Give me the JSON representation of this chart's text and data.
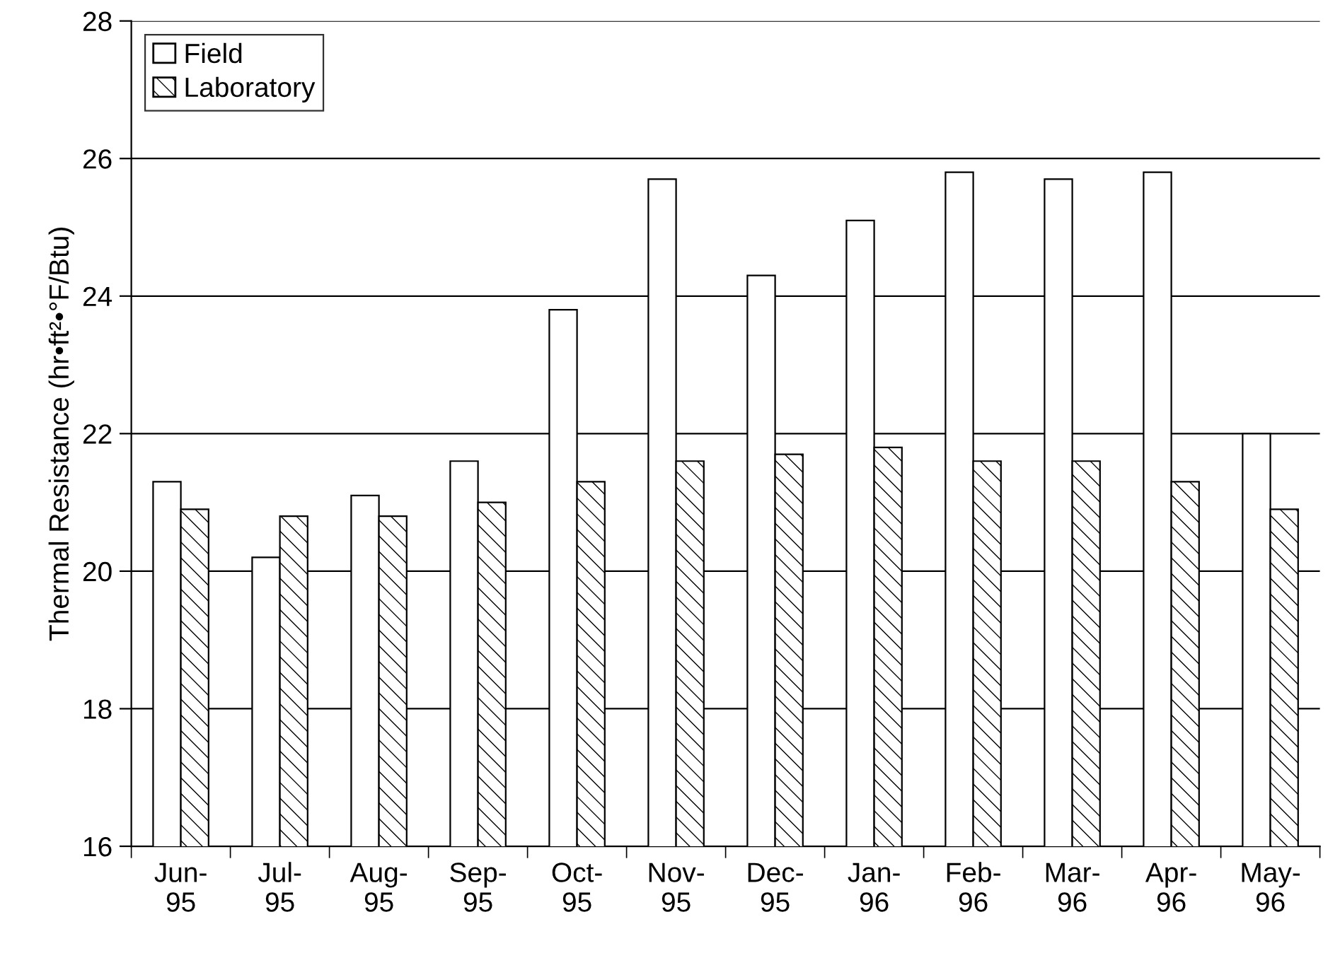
{
  "chart_data": {
    "type": "bar",
    "ylabel": "Thermal Resistance (hr•ft²•°F/Btu)",
    "categories": [
      "Jun-\n95",
      "Jul-\n95",
      "Aug-\n95",
      "Sep-\n95",
      "Oct-\n95",
      "Nov-\n95",
      "Dec-\n95",
      "Jan-\n96",
      "Feb-\n96",
      "Mar-\n96",
      "Apr-\n96",
      "May-\n96"
    ],
    "series": [
      {
        "name": "Field",
        "color": "#ffffff",
        "values": [
          21.3,
          20.2,
          21.1,
          21.6,
          23.8,
          25.7,
          24.3,
          25.1,
          25.8,
          25.7,
          25.8,
          22.0
        ]
      },
      {
        "name": "Laboratory",
        "color": "#000000",
        "values": [
          20.9,
          20.8,
          20.8,
          21.0,
          21.3,
          21.6,
          21.7,
          21.8,
          21.6,
          21.6,
          21.3,
          20.9
        ]
      }
    ],
    "ylim": [
      16,
      28
    ],
    "yticks": [
      16,
      18,
      20,
      22,
      24,
      26,
      28
    ],
    "grid": "y",
    "legend": "top left"
  }
}
